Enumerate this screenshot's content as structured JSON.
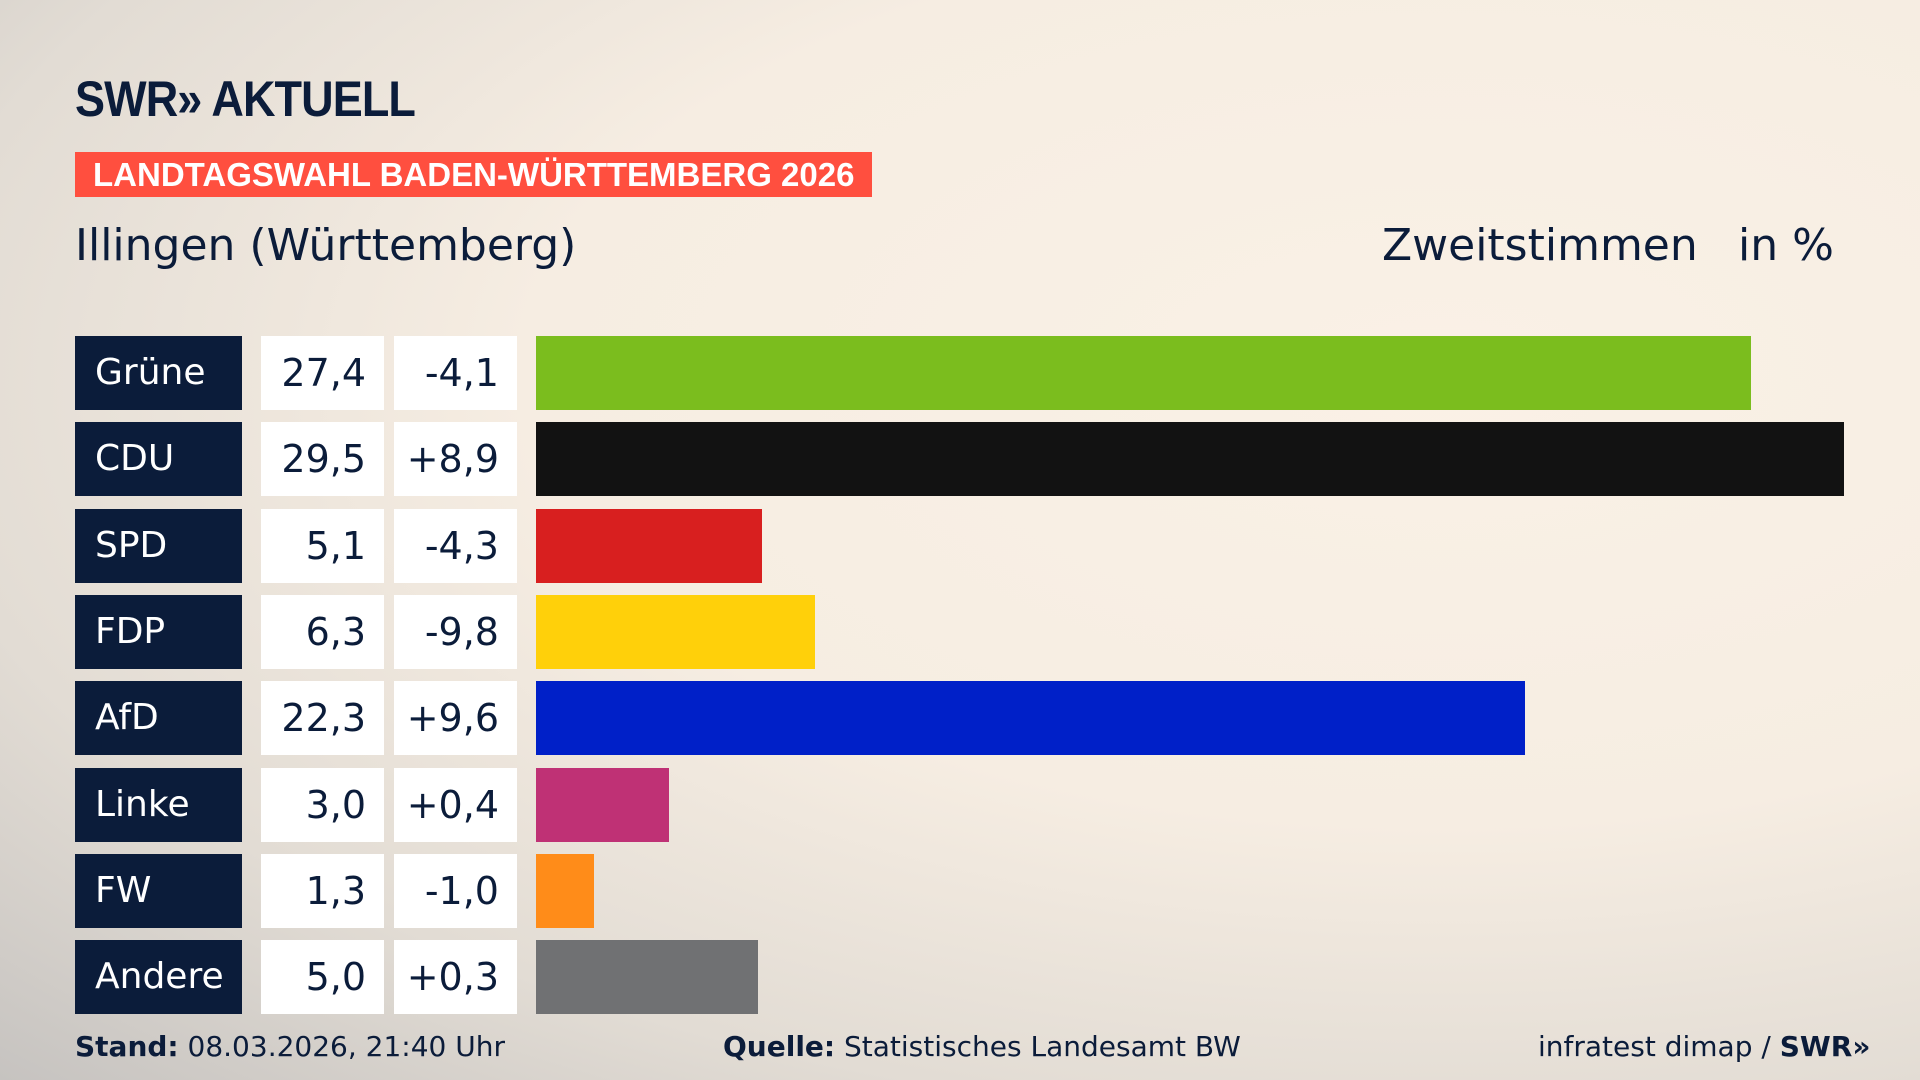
{
  "brand": "SWR» AKTUELL",
  "banner": "LANDTAGSWAHL BADEN-WÜRTTEMBERG 2026",
  "place": "Illingen (Württemberg)",
  "metric": "Zweitstimmen",
  "unit": "in %",
  "chart_data": {
    "type": "bar",
    "orientation": "horizontal",
    "categories": [
      "Grüne",
      "CDU",
      "SPD",
      "FDP",
      "AfD",
      "Linke",
      "FW",
      "Andere"
    ],
    "values": [
      27.4,
      29.5,
      5.1,
      6.3,
      22.3,
      3.0,
      1.3,
      5.0
    ],
    "value_labels": [
      "27,4",
      "29,5",
      "5,1",
      "6,3",
      "22,3",
      "3,0",
      "1,3",
      "5,0"
    ],
    "changes": [
      "-4,1",
      "+8,9",
      "-4,3",
      "-9,8",
      "+9,6",
      "+0,4",
      "-1,0",
      "+0,3"
    ],
    "colors": [
      "#7bbd1e",
      "#121212",
      "#d81f1f",
      "#ffd00a",
      "#0020c8",
      "#bf3175",
      "#ff8c19",
      "#707173"
    ],
    "xlim": [
      0,
      29.5
    ]
  },
  "footer": {
    "stand_label": "Stand:",
    "stand": "08.03.2026, 21:40 Uhr",
    "source_label": "Quelle:",
    "source": "Statistisches Landesamt BW",
    "credit": "infratest dimap / ",
    "credit_brand": "SWR»"
  }
}
